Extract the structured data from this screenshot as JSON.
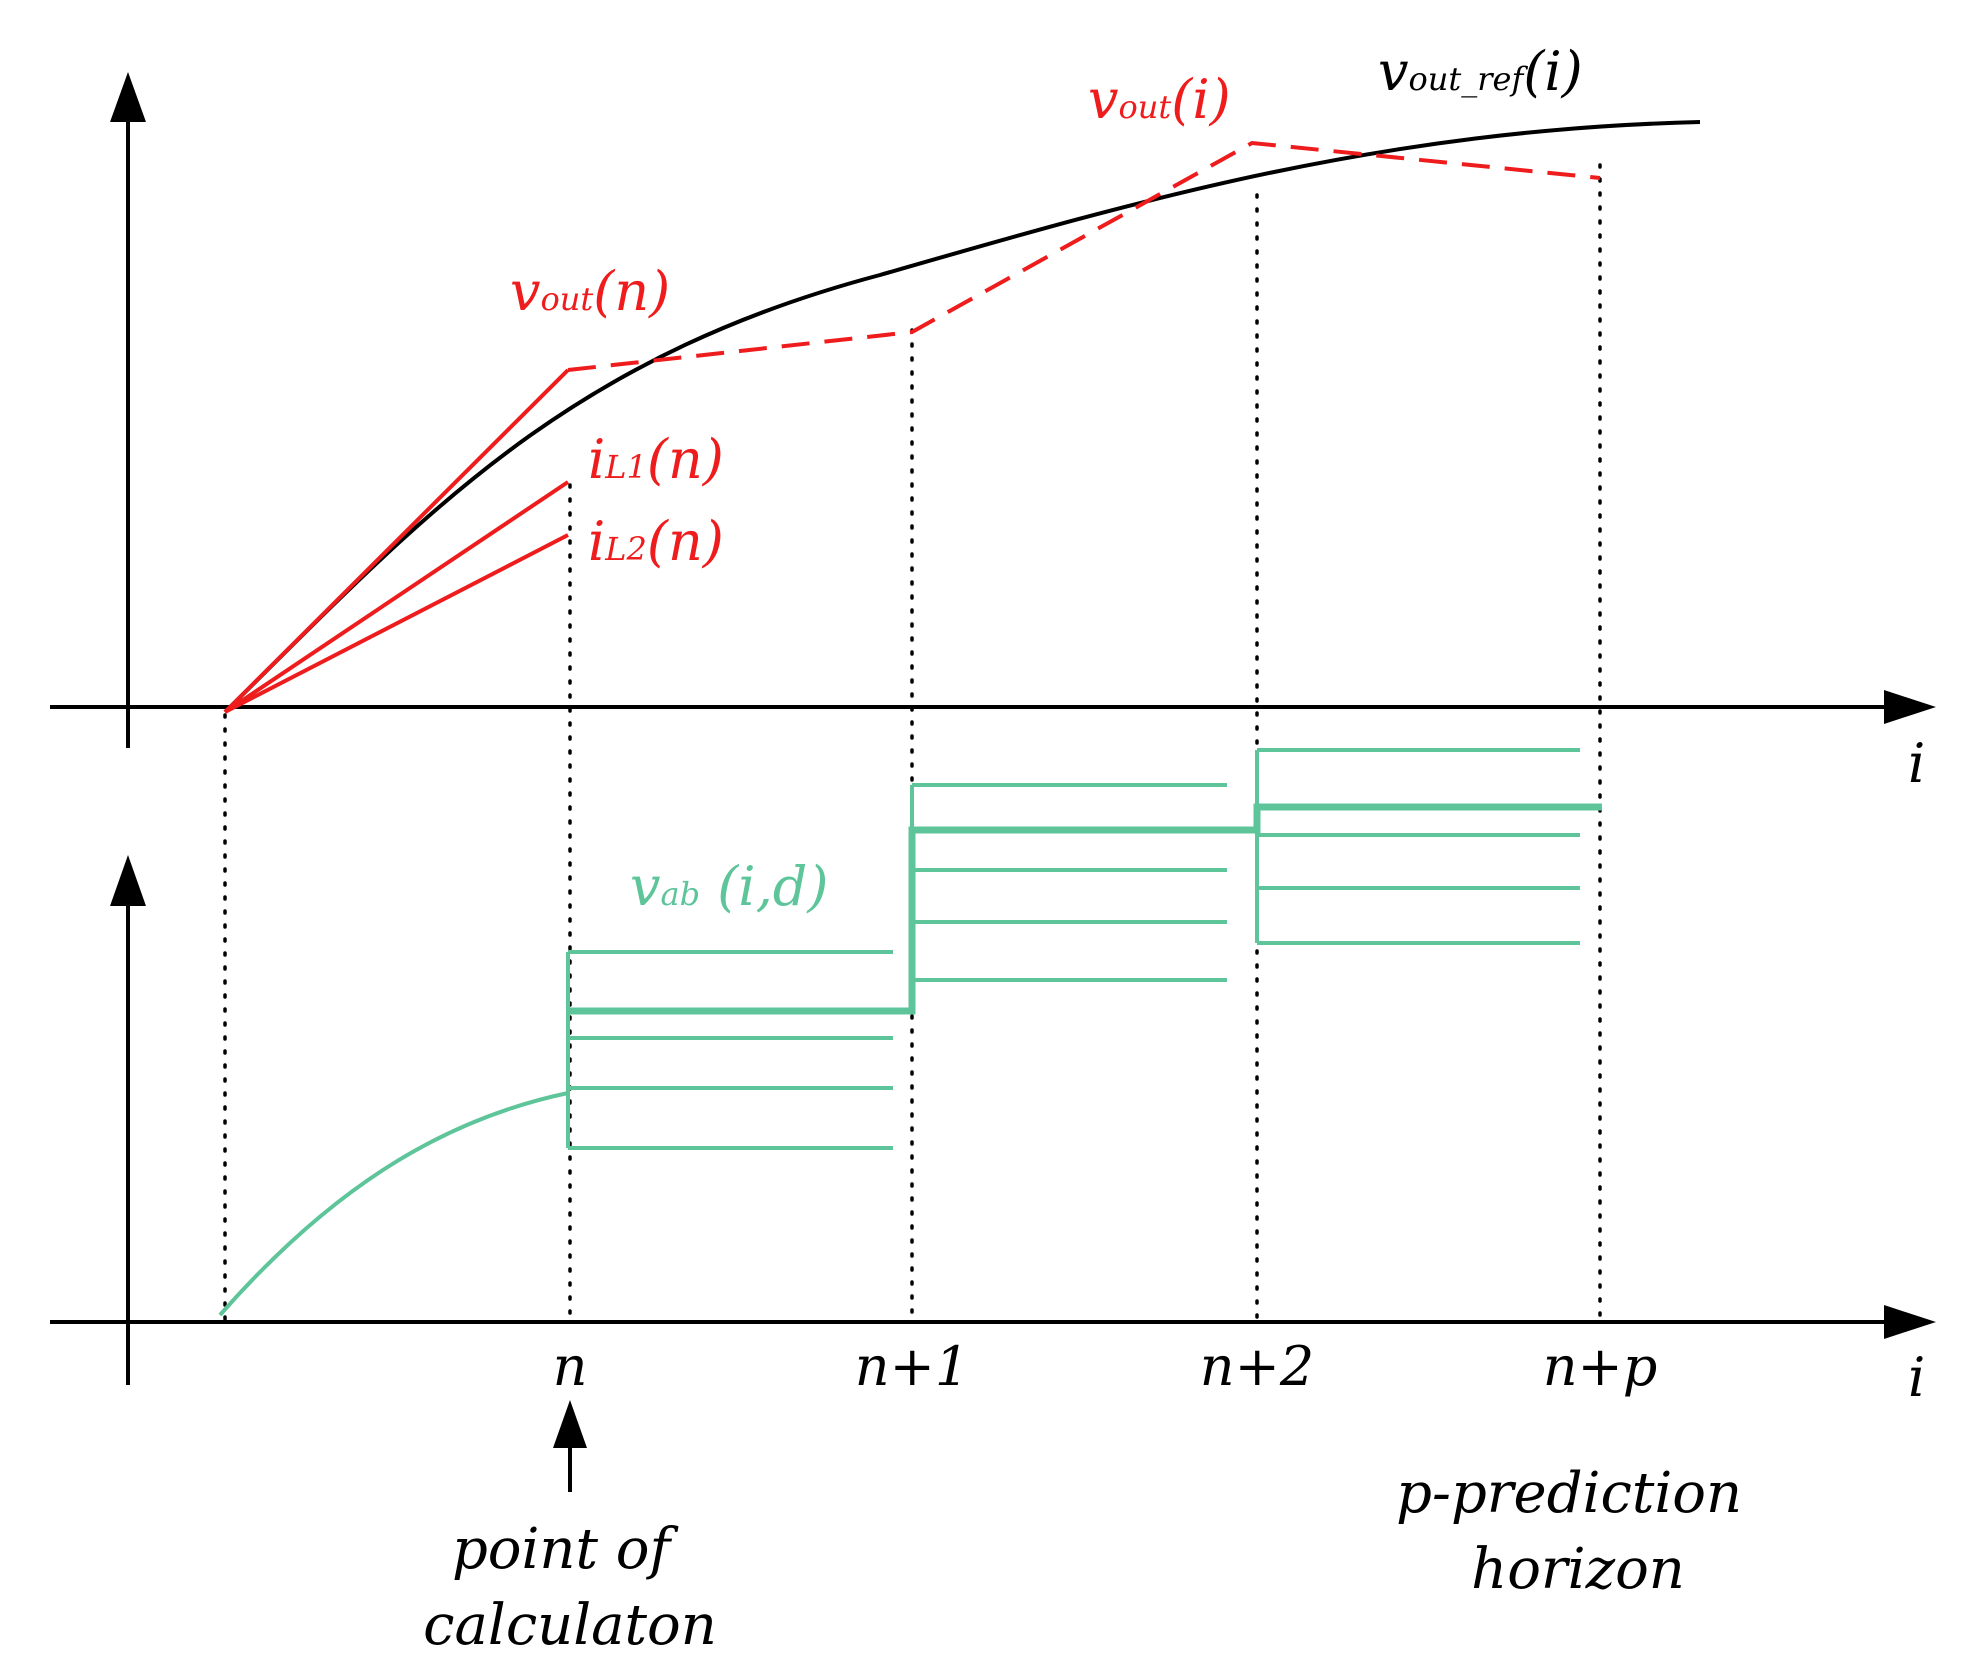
{
  "colors": {
    "black": "#000000",
    "red": "#ee1c1c",
    "green": "#5ec59a"
  },
  "labels": {
    "vout_ref": {
      "main": "v",
      "sub": "out_ref",
      "arg": "(i)"
    },
    "vout_i": {
      "main": "v",
      "sub": "out",
      "arg": "(i)"
    },
    "vout_n": {
      "main": "v",
      "sub": "out",
      "arg": "(n)"
    },
    "iL1_n": {
      "main": "i",
      "sub": "L1",
      "arg": "(n)"
    },
    "iL2_n": {
      "main": "i",
      "sub": "L2",
      "arg": "(n)"
    },
    "vab": {
      "main": "v",
      "sub": "ab",
      "arg": " (i,d)"
    },
    "top_axis_x": "i",
    "bottom_axis_x": "i"
  },
  "ticks": [
    "n",
    "n+1",
    "n+2",
    "n+p"
  ],
  "annotations": {
    "point_of_calc": [
      "point of",
      "calculaton"
    ],
    "horizon": [
      "p-prediction",
      "horizon"
    ]
  }
}
